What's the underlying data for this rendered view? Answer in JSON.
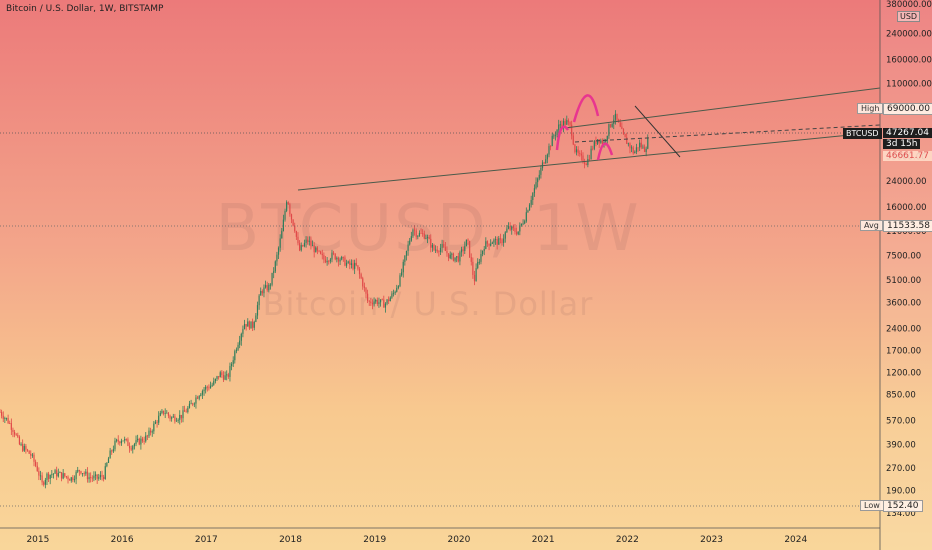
{
  "header": {
    "title": "Bitcoin / U.S. Dollar, 1W, BITSTAMP"
  },
  "watermark": {
    "symbol": "BTCUSD, 1W",
    "description": "Bitcoin / U.S. Dollar"
  },
  "axis": {
    "currency": "USD"
  },
  "labels": {
    "high_tag": "High",
    "high_value": "69000.00",
    "ticker": "BTCUSD",
    "last_price": "47267.04",
    "countdown": "3d 15h",
    "low_marker_value": "46661.77",
    "avg_tag": "Avg",
    "avg_value": "11533.58",
    "low_tag": "Low",
    "low_value": "152.40"
  },
  "colors": {
    "candle_up": "#2e7d5b",
    "candle_down": "#e04848",
    "trendline": "#4a5a4a",
    "annotation": "#e8358f",
    "label_dark": "#1e1e1e"
  },
  "chart_data": {
    "type": "candlestick-line",
    "yscale": "log",
    "ylim": [
      134.0,
      380000.0
    ],
    "y_ticks": [
      380000,
      240000,
      160000,
      110000,
      75000,
      51000,
      35000,
      24000,
      16000,
      11000,
      7500,
      5100,
      3600,
      2400,
      1700,
      1200,
      850,
      570,
      390,
      270,
      190,
      134
    ],
    "y_tick_labels": [
      "380000.00",
      "240000.00",
      "160000.00",
      "110000.00",
      "75000.00",
      "51000.00",
      "35000.00",
      "24000.00",
      "16000.00",
      "11000.00",
      "7500.00",
      "5100.00",
      "3600.00",
      "2400.00",
      "1700.00",
      "1200.00",
      "850.00",
      "570.00",
      "390.00",
      "270.00",
      "190.00",
      "134.00"
    ],
    "x_ticks": [
      "2015",
      "2016",
      "2017",
      "2018",
      "2019",
      "2020",
      "2021",
      "2022",
      "2023",
      "2024"
    ],
    "x_tick_pos": [
      2015.0,
      2016.0,
      2017.0,
      2018.0,
      2019.0,
      2020.0,
      2021.0,
      2022.0,
      2023.0,
      2024.0
    ],
    "xlim": [
      2014.55,
      2025.0
    ],
    "series": [
      {
        "points": [
          [
            2014.55,
            650
          ],
          [
            2014.65,
            560
          ],
          [
            2014.72,
            480
          ],
          [
            2014.78,
            390
          ],
          [
            2014.85,
            360
          ],
          [
            2014.92,
            330
          ],
          [
            2015.0,
            260
          ],
          [
            2015.05,
            210
          ],
          [
            2015.1,
            240
          ],
          [
            2015.2,
            250
          ],
          [
            2015.3,
            240
          ],
          [
            2015.4,
            230
          ],
          [
            2015.5,
            265
          ],
          [
            2015.6,
            235
          ],
          [
            2015.7,
            230
          ],
          [
            2015.78,
            240
          ],
          [
            2015.85,
            330
          ],
          [
            2015.92,
            400
          ],
          [
            2016.0,
            430
          ],
          [
            2016.1,
            380
          ],
          [
            2016.2,
            410
          ],
          [
            2016.3,
            440
          ],
          [
            2016.42,
            580
          ],
          [
            2016.5,
            660
          ],
          [
            2016.58,
            590
          ],
          [
            2016.7,
            610
          ],
          [
            2016.8,
            700
          ],
          [
            2016.92,
            880
          ],
          [
            2017.0,
            950
          ],
          [
            2017.08,
            1000
          ],
          [
            2017.16,
            1180
          ],
          [
            2017.25,
            1100
          ],
          [
            2017.35,
            1750
          ],
          [
            2017.45,
            2600
          ],
          [
            2017.55,
            2500
          ],
          [
            2017.65,
            4300
          ],
          [
            2017.75,
            4600
          ],
          [
            2017.83,
            7000
          ],
          [
            2017.9,
            11000
          ],
          [
            2017.96,
            19000
          ],
          [
            2018.0,
            14000
          ],
          [
            2018.05,
            11500
          ],
          [
            2018.1,
            8000
          ],
          [
            2018.2,
            9500
          ],
          [
            2018.3,
            8000
          ],
          [
            2018.4,
            7000
          ],
          [
            2018.5,
            7500
          ],
          [
            2018.58,
            7200
          ],
          [
            2018.68,
            6500
          ],
          [
            2018.78,
            6300
          ],
          [
            2018.85,
            5000
          ],
          [
            2018.92,
            3600
          ],
          [
            2019.0,
            3700
          ],
          [
            2019.12,
            3500
          ],
          [
            2019.22,
            4100
          ],
          [
            2019.3,
            5200
          ],
          [
            2019.38,
            8000
          ],
          [
            2019.45,
            11500
          ],
          [
            2019.5,
            10500
          ],
          [
            2019.6,
            10300
          ],
          [
            2019.7,
            8200
          ],
          [
            2019.8,
            8500
          ],
          [
            2019.9,
            7300
          ],
          [
            2020.0,
            7200
          ],
          [
            2020.1,
            9500
          ],
          [
            2020.18,
            5000
          ],
          [
            2020.22,
            6500
          ],
          [
            2020.3,
            8800
          ],
          [
            2020.4,
            9400
          ],
          [
            2020.5,
            9200
          ],
          [
            2020.58,
            11500
          ],
          [
            2020.7,
            10800
          ],
          [
            2020.78,
            13500
          ],
          [
            2020.85,
            18000
          ],
          [
            2020.92,
            23000
          ],
          [
            2021.0,
            32000
          ],
          [
            2021.05,
            38000
          ],
          [
            2021.12,
            48000
          ],
          [
            2021.2,
            58000
          ],
          [
            2021.28,
            60000
          ],
          [
            2021.33,
            55000
          ],
          [
            2021.38,
            38000
          ],
          [
            2021.45,
            34000
          ],
          [
            2021.52,
            32000
          ],
          [
            2021.58,
            40000
          ],
          [
            2021.65,
            47000
          ],
          [
            2021.72,
            43000
          ],
          [
            2021.78,
            55000
          ],
          [
            2021.85,
            66000
          ],
          [
            2021.9,
            57000
          ],
          [
            2021.96,
            47000
          ],
          [
            2022.02,
            42000
          ],
          [
            2022.08,
            37000
          ],
          [
            2022.14,
            43000
          ],
          [
            2022.2,
            39000
          ],
          [
            2022.26,
            47267
          ]
        ]
      }
    ]
  }
}
